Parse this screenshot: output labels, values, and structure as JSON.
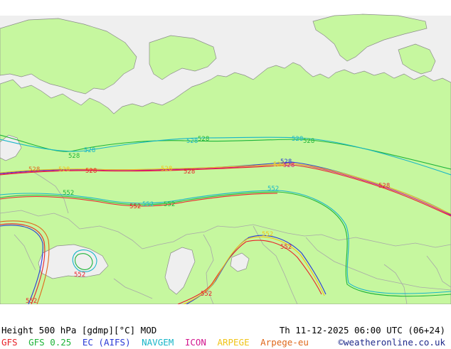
{
  "map": {
    "colors": {
      "sea": "#efefef",
      "land": "#c6f79f",
      "border": "#a8a8a8",
      "coast": "#8c8c8c"
    },
    "contour_labels": {
      "gfs": "528",
      "gfs025": "528",
      "ec": "528",
      "navgem": "528",
      "icon": "528",
      "arpege": "528",
      "arpege_eu": "528",
      "low_gfs": "552",
      "low_gfs025": "552",
      "low_ec": "552",
      "low_navgem": "552",
      "low_icon": "552",
      "low_arpege": "552"
    }
  },
  "footer": {
    "title": "Height 500 hPa [gdmp][°C] MOD",
    "datetime": "Th 11-12-2025 06:00 UTC (06+24)",
    "credit": "©weatheronline.co.uk",
    "models": [
      {
        "label": "GFS",
        "color": "#e8232a"
      },
      {
        "label": "GFS 0.25",
        "color": "#1fb53a"
      },
      {
        "label": "EC (AIFS)",
        "color": "#2a3ad6"
      },
      {
        "label": "NAVGEM",
        "color": "#18b6c8"
      },
      {
        "label": "ICON",
        "color": "#d3188f"
      },
      {
        "label": "ARPEGE",
        "color": "#f0c419"
      },
      {
        "label": "Arpege-eu",
        "color": "#e0681c"
      }
    ]
  }
}
